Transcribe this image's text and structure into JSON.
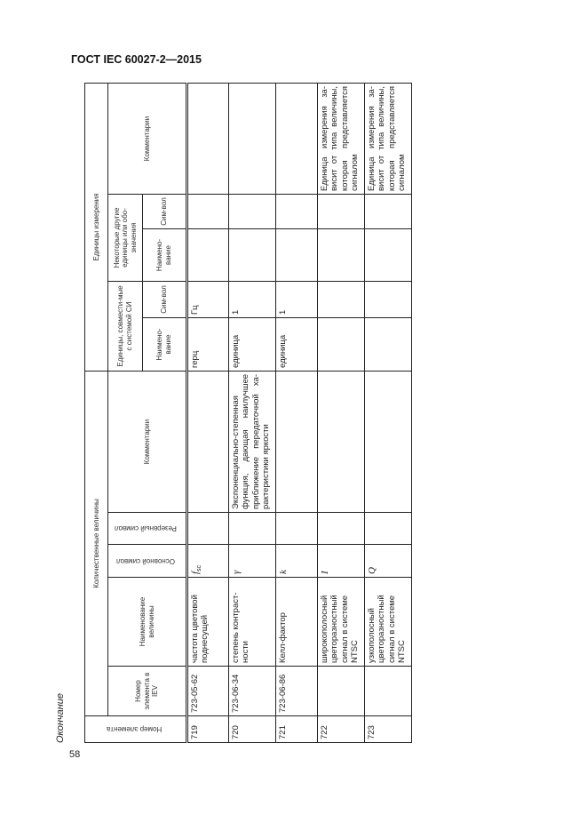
{
  "doc_title": "ГОСТ IEC 60027-2—2015",
  "continuation": "Окончание",
  "page_number": "58",
  "headers": {
    "element_no": "Номер элемента",
    "quantities": "Количественные величины",
    "iev_no": "Номер элемента в IEV",
    "quantity_name": "Наименование величины",
    "main_symbol": "Основной символ",
    "reserve_symbol": "Резервный символ",
    "comments": "Комментарии",
    "units": "Единицы измерения",
    "si_units": "Единицы, совмести-мые с системой СИ",
    "other_units": "Некоторые другие единицы или обо-значения",
    "name": "Наимено-вание",
    "symbol": "Сим-вол",
    "unit_comments": "Комментарии"
  },
  "rows": [
    {
      "no": "719",
      "iev": "723-05-62",
      "name": "частота цветовой поднесущей",
      "symbol": "f",
      "symbol_sub": "sc",
      "reserve": "",
      "comment": "",
      "si_name": "герц",
      "si_symbol": "Гц",
      "other_name": "",
      "other_symbol": "",
      "unit_comment": ""
    },
    {
      "no": "720",
      "iev": "723-06-34",
      "name": "степень контраст-ности",
      "symbol": "γ",
      "symbol_sub": "",
      "reserve": "",
      "comment": "Экспоненциально-степенная функция, дающая наилучшее приближение передаточной ха-рактеристики яркости",
      "si_name": "единица",
      "si_symbol": "1",
      "other_name": "",
      "other_symbol": "",
      "unit_comment": ""
    },
    {
      "no": "721",
      "iev": "723-06-86",
      "name": "Келл-фактор",
      "symbol": "k",
      "symbol_sub": "",
      "reserve": "",
      "comment": "",
      "si_name": "единица",
      "si_symbol": "1",
      "other_name": "",
      "other_symbol": "",
      "unit_comment": ""
    },
    {
      "no": "722",
      "iev": "",
      "name": "широкополосный цветоразностный сигнал в системе NTSC",
      "symbol": "I",
      "symbol_sub": "",
      "reserve": "",
      "comment": "",
      "si_name": "",
      "si_symbol": "",
      "other_name": "",
      "other_symbol": "",
      "unit_comment": "Единица измерения за-висит от типа величины, которая представляется сигналом"
    },
    {
      "no": "723",
      "iev": "",
      "name": "узкополосный цветоразностный сигнал в системе NTSC",
      "symbol": "Q",
      "symbol_sub": "",
      "reserve": "",
      "comment": "",
      "si_name": "",
      "si_symbol": "",
      "other_name": "",
      "other_symbol": "",
      "unit_comment": "Единица измерения за-висит от типа величины, которая представляется сигналом"
    }
  ]
}
